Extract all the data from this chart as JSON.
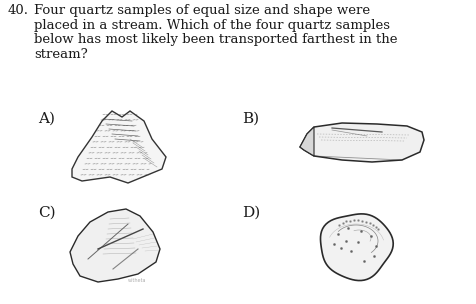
{
  "question_number": "40.",
  "question_text_line1": "Four quartz samples of equal size and shape were",
  "question_text_line2": "placed in a stream. Which of the four quartz samples",
  "question_text_line3": "below has most likely been transported farthest in the",
  "question_text_line4": "stream?",
  "label_A": "A)",
  "label_B": "B)",
  "label_C": "C)",
  "label_D": "D)",
  "bg_color": "#ffffff",
  "text_color": "#1a1a1a",
  "font_size_question": 9.5,
  "font_size_labels": 11,
  "fig_width": 4.76,
  "fig_height": 3.04,
  "dpi": 100
}
